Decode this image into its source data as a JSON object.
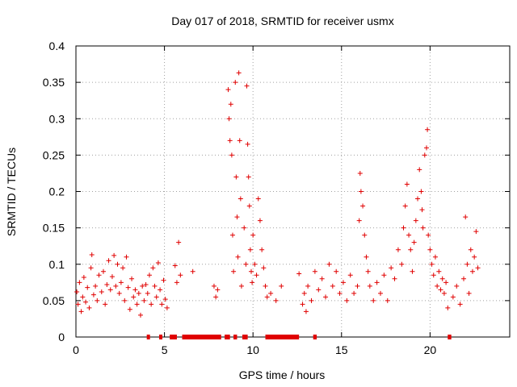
{
  "chart_data": {
    "type": "scatter",
    "title": "Day 017 of 2018, SRMTID for receiver usmx",
    "xlabel": "GPS time / hours",
    "ylabel": "SRMTID / TECUs",
    "xlim": [
      0,
      24.5
    ],
    "ylim": [
      0,
      0.4
    ],
    "grid": true,
    "marker": "+",
    "color": "#e00000",
    "x_ticks": [
      0,
      5,
      10,
      15,
      20
    ],
    "x_tick_labels": [
      "0",
      "5",
      "10",
      "15",
      "20"
    ],
    "y_ticks": [
      0,
      0.05,
      0.1,
      0.15,
      0.2,
      0.25,
      0.3,
      0.35,
      0.4
    ],
    "y_tick_labels": [
      "0",
      "0.05",
      "0.1",
      "0.15",
      "0.2",
      "0.25",
      "0.3",
      "0.35",
      "0.4"
    ],
    "series": [
      {
        "name": "SRMTID",
        "points": [
          [
            0.05,
            0.062
          ],
          [
            0.12,
            0.045
          ],
          [
            0.2,
            0.075
          ],
          [
            0.3,
            0.035
          ],
          [
            0.38,
            0.055
          ],
          [
            0.45,
            0.082
          ],
          [
            0.55,
            0.048
          ],
          [
            0.65,
            0.068
          ],
          [
            0.75,
            0.04
          ],
          [
            0.85,
            0.095
          ],
          [
            0.9,
            0.113
          ],
          [
            1.0,
            0.058
          ],
          [
            1.1,
            0.07
          ],
          [
            1.2,
            0.05
          ],
          [
            1.3,
            0.085
          ],
          [
            1.45,
            0.062
          ],
          [
            1.55,
            0.09
          ],
          [
            1.65,
            0.045
          ],
          [
            1.75,
            0.072
          ],
          [
            1.85,
            0.105
          ],
          [
            1.95,
            0.065
          ],
          [
            2.05,
            0.083
          ],
          [
            2.15,
            0.112
          ],
          [
            2.25,
            0.07
          ],
          [
            2.35,
            0.1
          ],
          [
            2.45,
            0.06
          ],
          [
            2.55,
            0.075
          ],
          [
            2.65,
            0.095
          ],
          [
            2.75,
            0.05
          ],
          [
            2.85,
            0.11
          ],
          [
            2.95,
            0.068
          ],
          [
            3.05,
            0.038
          ],
          [
            3.15,
            0.08
          ],
          [
            3.25,
            0.055
          ],
          [
            3.35,
            0.065
          ],
          [
            3.45,
            0.045
          ],
          [
            3.55,
            0.06
          ],
          [
            3.65,
            0.03
          ],
          [
            3.75,
            0.07
          ],
          [
            3.85,
            0.05
          ],
          [
            3.95,
            0.072
          ],
          [
            4.05,
            0.06
          ],
          [
            4.15,
            0.085
          ],
          [
            4.25,
            0.045
          ],
          [
            4.35,
            0.095
          ],
          [
            4.45,
            0.07
          ],
          [
            4.55,
            0.055
          ],
          [
            4.65,
            0.102
          ],
          [
            4.75,
            0.065
          ],
          [
            4.85,
            0.045
          ],
          [
            4.95,
            0.078
          ],
          [
            5.05,
            0.052
          ],
          [
            5.15,
            0.04
          ],
          [
            5.6,
            0.098
          ],
          [
            5.7,
            0.075
          ],
          [
            5.8,
            0.13
          ],
          [
            5.9,
            0.085
          ],
          [
            6.6,
            0.09
          ],
          [
            7.8,
            0.07
          ],
          [
            7.9,
            0.055
          ],
          [
            8.0,
            0.065
          ],
          [
            8.6,
            0.34
          ],
          [
            8.65,
            0.3
          ],
          [
            8.7,
            0.27
          ],
          [
            8.75,
            0.32
          ],
          [
            8.8,
            0.25
          ],
          [
            8.85,
            0.14
          ],
          [
            8.9,
            0.09
          ],
          [
            9.0,
            0.35
          ],
          [
            9.05,
            0.22
          ],
          [
            9.1,
            0.165
          ],
          [
            9.15,
            0.11
          ],
          [
            9.2,
            0.363
          ],
          [
            9.25,
            0.27
          ],
          [
            9.3,
            0.19
          ],
          [
            9.35,
            0.07
          ],
          [
            9.5,
            0.15
          ],
          [
            9.6,
            0.1
          ],
          [
            9.65,
            0.345
          ],
          [
            9.7,
            0.265
          ],
          [
            9.75,
            0.22
          ],
          [
            9.8,
            0.18
          ],
          [
            9.85,
            0.12
          ],
          [
            9.9,
            0.09
          ],
          [
            9.95,
            0.075
          ],
          [
            10.0,
            0.14
          ],
          [
            10.1,
            0.1
          ],
          [
            10.2,
            0.085
          ],
          [
            10.3,
            0.19
          ],
          [
            10.4,
            0.16
          ],
          [
            10.5,
            0.12
          ],
          [
            10.6,
            0.095
          ],
          [
            10.7,
            0.07
          ],
          [
            10.8,
            0.055
          ],
          [
            11.0,
            0.06
          ],
          [
            11.3,
            0.05
          ],
          [
            11.6,
            0.07
          ],
          [
            12.6,
            0.087
          ],
          [
            12.8,
            0.045
          ],
          [
            12.9,
            0.06
          ],
          [
            13.0,
            0.035
          ],
          [
            13.1,
            0.07
          ],
          [
            13.3,
            0.05
          ],
          [
            13.5,
            0.09
          ],
          [
            13.7,
            0.065
          ],
          [
            13.9,
            0.08
          ],
          [
            14.1,
            0.055
          ],
          [
            14.3,
            0.1
          ],
          [
            14.5,
            0.07
          ],
          [
            14.7,
            0.09
          ],
          [
            14.9,
            0.06
          ],
          [
            15.1,
            0.075
          ],
          [
            15.3,
            0.05
          ],
          [
            15.5,
            0.085
          ],
          [
            15.7,
            0.06
          ],
          [
            15.9,
            0.07
          ],
          [
            16.0,
            0.16
          ],
          [
            16.05,
            0.225
          ],
          [
            16.1,
            0.2
          ],
          [
            16.2,
            0.18
          ],
          [
            16.3,
            0.14
          ],
          [
            16.4,
            0.11
          ],
          [
            16.5,
            0.09
          ],
          [
            16.6,
            0.07
          ],
          [
            16.8,
            0.05
          ],
          [
            17.0,
            0.075
          ],
          [
            17.2,
            0.06
          ],
          [
            17.4,
            0.085
          ],
          [
            17.6,
            0.05
          ],
          [
            17.8,
            0.095
          ],
          [
            18.0,
            0.08
          ],
          [
            18.2,
            0.12
          ],
          [
            18.4,
            0.1
          ],
          [
            18.5,
            0.15
          ],
          [
            18.6,
            0.18
          ],
          [
            18.7,
            0.21
          ],
          [
            18.8,
            0.14
          ],
          [
            18.9,
            0.12
          ],
          [
            19.0,
            0.09
          ],
          [
            19.1,
            0.13
          ],
          [
            19.2,
            0.16
          ],
          [
            19.3,
            0.19
          ],
          [
            19.4,
            0.23
          ],
          [
            19.5,
            0.2
          ],
          [
            19.55,
            0.175
          ],
          [
            19.6,
            0.15
          ],
          [
            19.7,
            0.25
          ],
          [
            19.8,
            0.26
          ],
          [
            19.85,
            0.285
          ],
          [
            19.9,
            0.14
          ],
          [
            20.0,
            0.12
          ],
          [
            20.1,
            0.1
          ],
          [
            20.2,
            0.085
          ],
          [
            20.3,
            0.11
          ],
          [
            20.4,
            0.07
          ],
          [
            20.5,
            0.09
          ],
          [
            20.6,
            0.065
          ],
          [
            20.7,
            0.08
          ],
          [
            20.8,
            0.06
          ],
          [
            20.9,
            0.075
          ],
          [
            21.0,
            0.04
          ],
          [
            21.3,
            0.055
          ],
          [
            21.5,
            0.07
          ],
          [
            21.7,
            0.045
          ],
          [
            21.9,
            0.08
          ],
          [
            22.0,
            0.165
          ],
          [
            22.1,
            0.1
          ],
          [
            22.2,
            0.06
          ],
          [
            22.3,
            0.12
          ],
          [
            22.4,
            0.09
          ],
          [
            22.5,
            0.11
          ],
          [
            22.6,
            0.145
          ],
          [
            22.7,
            0.095
          ]
        ]
      }
    ],
    "zero_segments": [
      [
        4.0,
        4.1
      ],
      [
        4.7,
        4.8
      ],
      [
        5.3,
        5.7
      ],
      [
        6.0,
        8.2
      ],
      [
        8.4,
        8.7
      ],
      [
        8.9,
        9.1
      ],
      [
        9.4,
        9.7
      ],
      [
        10.7,
        12.6
      ],
      [
        13.4,
        13.6
      ],
      [
        21.0,
        21.2
      ]
    ]
  }
}
